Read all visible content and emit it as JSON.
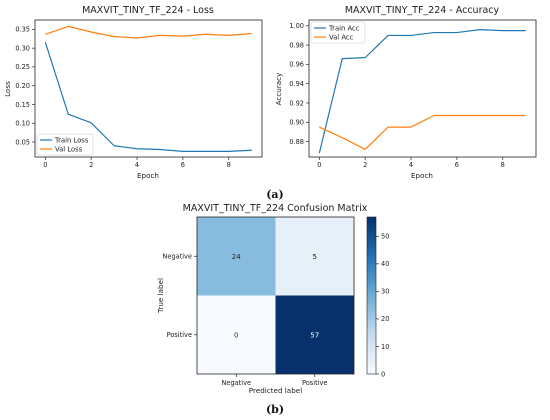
{
  "captions": {
    "a": "(a)",
    "b": "(b)"
  },
  "chart_data": [
    {
      "type": "line",
      "title": "MAXVIT_TINY_TF_224 - Loss",
      "xlabel": "Epoch",
      "ylabel": "Loss",
      "x": [
        0,
        1,
        2,
        3,
        4,
        5,
        6,
        7,
        8,
        9
      ],
      "xlim": [
        -0.45,
        9.45
      ],
      "ylim": [
        0.01,
        0.375
      ],
      "xticks": [
        0,
        2,
        4,
        6,
        8
      ],
      "yticks": [
        0.05,
        0.1,
        0.15,
        0.2,
        0.25,
        0.3,
        0.35
      ],
      "ytick_labels": [
        "0.05",
        "0.10",
        "0.15",
        "0.20",
        "0.25",
        "0.30",
        "0.35"
      ],
      "legend_position": "bottom-left",
      "series": [
        {
          "name": "Train Loss",
          "color": "#1f77b4",
          "values": [
            0.316,
            0.124,
            0.101,
            0.04,
            0.032,
            0.03,
            0.025,
            0.025,
            0.025,
            0.028
          ]
        },
        {
          "name": "Val Loss",
          "color": "#ff7f0e",
          "values": [
            0.337,
            0.358,
            0.343,
            0.331,
            0.327,
            0.334,
            0.332,
            0.337,
            0.334,
            0.339
          ]
        }
      ]
    },
    {
      "type": "line",
      "title": "MAXVIT_TINY_TF_224 - Accuracy",
      "xlabel": "Epoch",
      "ylabel": "Accuracy",
      "x": [
        0,
        1,
        2,
        3,
        4,
        5,
        6,
        7,
        8,
        9
      ],
      "xlim": [
        -0.45,
        9.45
      ],
      "ylim": [
        0.864,
        1.006
      ],
      "xticks": [
        0,
        2,
        4,
        6,
        8
      ],
      "yticks": [
        0.88,
        0.9,
        0.92,
        0.94,
        0.96,
        0.98,
        1.0
      ],
      "ytick_labels": [
        "0.88",
        "0.90",
        "0.92",
        "0.94",
        "0.96",
        "0.98",
        "1.00"
      ],
      "legend_position": "top-left",
      "series": [
        {
          "name": "Train Acc",
          "color": "#1f77b4",
          "values": [
            0.868,
            0.966,
            0.967,
            0.99,
            0.99,
            0.993,
            0.993,
            0.996,
            0.995,
            0.995
          ]
        },
        {
          "name": "Val Acc",
          "color": "#ff7f0e",
          "values": [
            0.895,
            0.884,
            0.872,
            0.895,
            0.895,
            0.907,
            0.907,
            0.907,
            0.907,
            0.907
          ]
        }
      ]
    },
    {
      "type": "heatmap",
      "title": "MAXVIT_TINY_TF_224 Confusion Matrix",
      "xlabel": "Predicted label",
      "ylabel": "True label",
      "row_labels": [
        "Negative",
        "Positive"
      ],
      "col_labels": [
        "Negative",
        "Positive"
      ],
      "values": [
        [
          24,
          5
        ],
        [
          0,
          57
        ]
      ],
      "colorbar_range": [
        0,
        57
      ],
      "colorbar_ticks": [
        0,
        10,
        20,
        30,
        40,
        50
      ],
      "colormap": "Blues"
    }
  ]
}
